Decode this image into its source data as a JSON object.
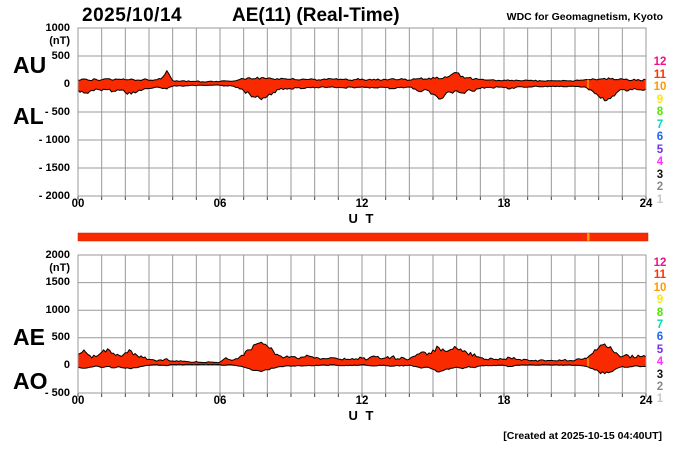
{
  "header": {
    "date": "2025/10/14",
    "title": "AE(11) (Real-Time)",
    "org": "WDC for Geomagnetism, Kyoto"
  },
  "footer": {
    "created": "[Created at 2025-10-15 04:40UT]"
  },
  "colors": {
    "band_fill": "#fa2a00",
    "band_outline": "#000000",
    "grid": "#999999",
    "tick": "#444444",
    "bar": "#fa2a00",
    "bar_gap": "#ffa000"
  },
  "station_legend": {
    "labels": [
      "12",
      "11",
      "10",
      "9",
      "8",
      "7",
      "6",
      "5",
      "4",
      "3",
      "2",
      "1"
    ],
    "colors": [
      "#ee1289",
      "#ff3300",
      "#ff9900",
      "#ffe800",
      "#55e600",
      "#00ddb0",
      "#1f66f0",
      "#6e32e6",
      "#ff33ff",
      "#111111",
      "#8a8a8a",
      "#c8c8c8"
    ]
  },
  "availability_bar": {
    "gap_t": 21.55,
    "t_range": [
      0,
      24
    ]
  },
  "chart_data": [
    {
      "type": "area",
      "title": "AU / AL auroral electrojet indices",
      "left_labels": [
        "AU",
        "AL"
      ],
      "unit": "(nT)",
      "ylim": [
        -2000,
        1000
      ],
      "yticks": [
        1000,
        500,
        0,
        -500,
        -1000,
        -1500,
        -2000
      ],
      "ytick_labels": [
        "1000",
        "500",
        "0",
        "- 500",
        "- 1000",
        "- 1500",
        "- 2000"
      ],
      "xticks": [
        0,
        6,
        12,
        18,
        24
      ],
      "xtick_labels": [
        "00",
        "06",
        "12",
        "18",
        "24"
      ],
      "xlabel": "U T",
      "grid": true,
      "x_start": 0,
      "x_step": 0.25,
      "series": [
        {
          "name": "AU",
          "values": [
            70,
            90,
            65,
            85,
            75,
            95,
            70,
            85,
            75,
            90,
            70,
            80,
            65,
            75,
            90,
            240,
            60,
            50,
            55,
            45,
            50,
            40,
            45,
            40,
            45,
            55,
            50,
            70,
            90,
            110,
            95,
            115,
            100,
            90,
            80,
            95,
            85,
            75,
            90,
            80,
            85,
            70,
            80,
            90,
            75,
            85,
            70,
            80,
            90,
            75,
            85,
            70,
            80,
            95,
            75,
            85,
            70,
            90,
            110,
            85,
            120,
            95,
            130,
            160,
            200,
            140,
            110,
            90,
            80,
            70,
            75,
            65,
            70,
            60,
            70,
            55,
            65,
            55,
            60,
            50,
            60,
            55,
            65,
            55,
            60,
            70,
            80,
            95,
            85,
            100,
            90,
            80,
            90,
            70,
            85,
            65,
            75
          ]
        },
        {
          "name": "AL",
          "values": [
            -110,
            -160,
            -130,
            -90,
            -120,
            -100,
            -130,
            -110,
            -150,
            -180,
            -140,
            -100,
            -80,
            -60,
            -70,
            -90,
            -40,
            -30,
            -35,
            -25,
            -30,
            -20,
            -25,
            -20,
            -25,
            -30,
            -35,
            -60,
            -120,
            -180,
            -240,
            -280,
            -220,
            -150,
            -100,
            -80,
            -90,
            -70,
            -80,
            -60,
            -70,
            -55,
            -65,
            -50,
            -60,
            -70,
            -55,
            -65,
            -50,
            -60,
            -70,
            -55,
            -65,
            -80,
            -60,
            -70,
            -55,
            -90,
            -140,
            -110,
            -180,
            -270,
            -200,
            -150,
            -120,
            -160,
            -100,
            -130,
            -80,
            -60,
            -70,
            -55,
            -65,
            -90,
            -60,
            -50,
            -55,
            -45,
            -50,
            -40,
            -45,
            -40,
            -50,
            -40,
            -45,
            -55,
            -70,
            -130,
            -220,
            -300,
            -260,
            -160,
            -100,
            -120,
            -80,
            -100,
            -90
          ]
        }
      ]
    },
    {
      "type": "area",
      "title": "AE / AO auroral electrojet indices",
      "left_labels": [
        "AE",
        "AO"
      ],
      "unit": "(nT)",
      "ylim": [
        -500,
        2000
      ],
      "yticks": [
        2000,
        1500,
        1000,
        500,
        0,
        -500
      ],
      "ytick_labels": [
        "2000",
        "1500",
        "1000",
        "500",
        "0",
        "- 500"
      ],
      "xticks": [
        0,
        6,
        12,
        18,
        24
      ],
      "xtick_labels": [
        "00",
        "06",
        "12",
        "18",
        "24"
      ],
      "xlabel": "U T",
      "grid": true,
      "x_start": 0,
      "x_step": 0.25,
      "series": [
        {
          "name": "AE",
          "values": [
            200,
            280,
            180,
            160,
            240,
            300,
            220,
            180,
            230,
            260,
            180,
            140,
            110,
            90,
            100,
            120,
            80,
            70,
            75,
            60,
            70,
            55,
            65,
            55,
            60,
            140,
            90,
            120,
            180,
            280,
            380,
            420,
            350,
            260,
            180,
            150,
            160,
            130,
            150,
            170,
            130,
            110,
            120,
            140,
            115,
            130,
            105,
            120,
            130,
            115,
            170,
            125,
            135,
            155,
            120,
            140,
            115,
            170,
            240,
            190,
            280,
            320,
            260,
            290,
            310,
            250,
            190,
            210,
            140,
            110,
            125,
            100,
            115,
            140,
            110,
            90,
            100,
            85,
            95,
            80,
            90,
            80,
            95,
            85,
            90,
            110,
            130,
            220,
            320,
            390,
            340,
            230,
            160,
            180,
            140,
            160,
            150
          ]
        },
        {
          "name": "AO",
          "values": [
            -30,
            -50,
            -35,
            -10,
            -40,
            -20,
            -45,
            -25,
            -50,
            -60,
            -40,
            -15,
            0,
            10,
            5,
            -5,
            15,
            20,
            15,
            20,
            15,
            20,
            15,
            20,
            15,
            5,
            10,
            -10,
            -30,
            -60,
            -90,
            -110,
            -80,
            -50,
            -25,
            -10,
            -15,
            -5,
            -10,
            0,
            -5,
            5,
            0,
            10,
            0,
            -5,
            5,
            0,
            10,
            0,
            -10,
            5,
            -5,
            -15,
            0,
            -10,
            5,
            -20,
            -50,
            -30,
            -70,
            -120,
            -80,
            -50,
            -30,
            -60,
            -20,
            -40,
            -10,
            0,
            -5,
            5,
            0,
            -20,
            0,
            10,
            5,
            10,
            5,
            10,
            5,
            10,
            0,
            10,
            5,
            -5,
            -20,
            -60,
            -110,
            -150,
            -120,
            -60,
            -20,
            -35,
            -10,
            -25,
            -20
          ]
        }
      ]
    }
  ]
}
